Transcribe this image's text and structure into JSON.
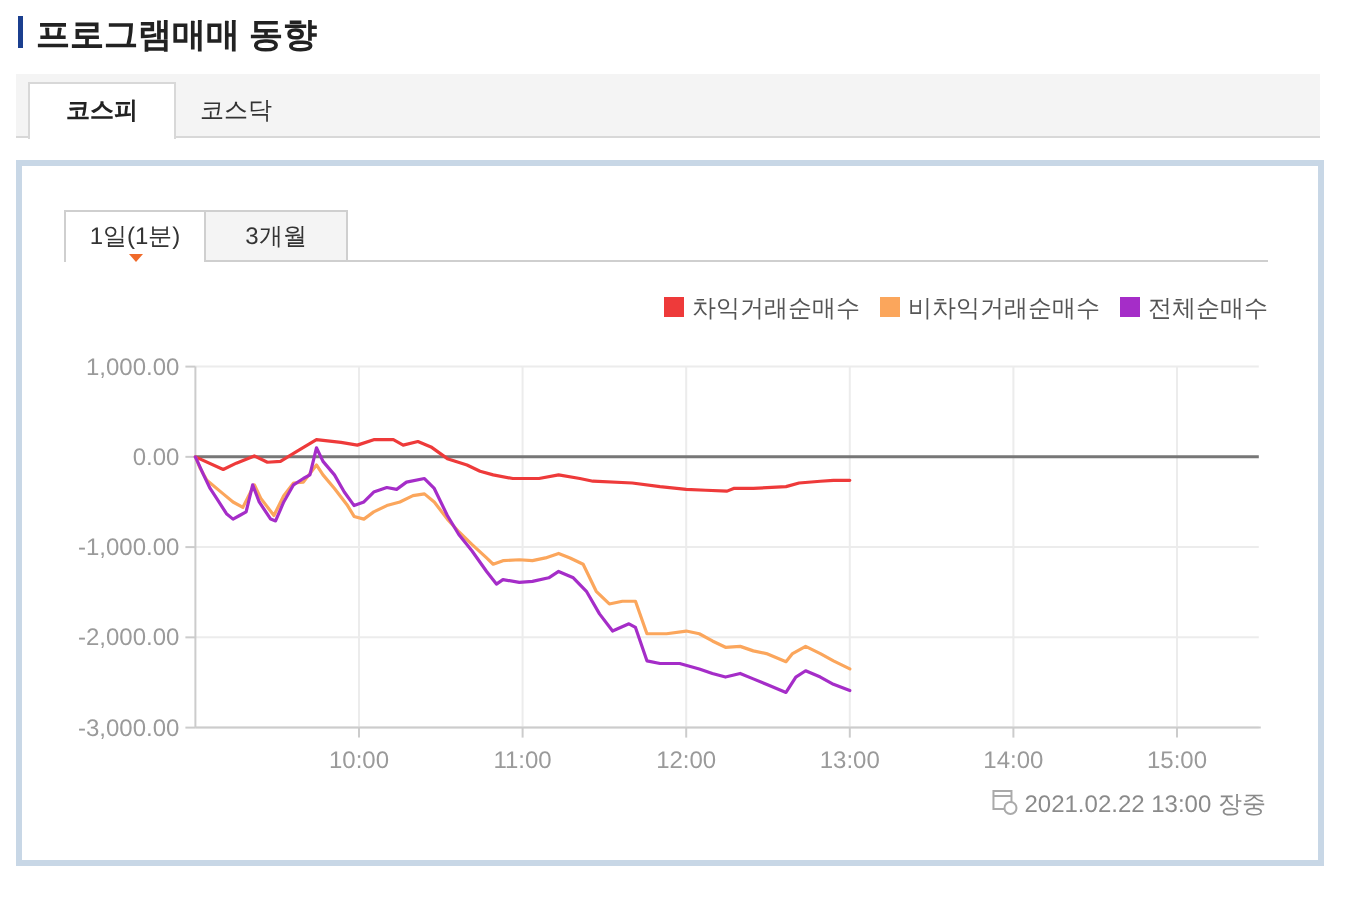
{
  "chart_data": {
    "type": "line",
    "title": "프로그램매매 동향",
    "annotations": [
      "코스피",
      "코스닥",
      "1일(1분)",
      "3개월",
      "2021.02.22 13:00 장중"
    ],
    "xlim": [
      9,
      15.5
    ],
    "xticks": [
      {
        "value": 10,
        "label": "10:00"
      },
      {
        "value": 11,
        "label": "11:00"
      },
      {
        "value": 12,
        "label": "12:00"
      },
      {
        "value": 13,
        "label": "13:00"
      },
      {
        "value": 14,
        "label": "14:00"
      },
      {
        "value": 15,
        "label": "15:00"
      }
    ],
    "ylim": [
      -3000,
      1000
    ],
    "yticks": [
      {
        "value": 1000,
        "label": "1,000.00"
      },
      {
        "value": 0,
        "label": "0.00"
      },
      {
        "value": -1000,
        "label": "-1,000.00"
      },
      {
        "value": -2000,
        "label": "-2,000.00"
      },
      {
        "value": -3000,
        "label": "-3,000.00"
      }
    ],
    "grid": true,
    "legend": "top right",
    "ref_lines": [
      {
        "axis": "y",
        "value": 0,
        "color": "#777777"
      }
    ],
    "series": [
      {
        "name": "차익거래순매수",
        "color": "#ee3a3a",
        "x": [
          9.0,
          9.17,
          9.25,
          9.36,
          9.44,
          9.52,
          9.62,
          9.74,
          9.89,
          9.99,
          10.09,
          10.21,
          10.27,
          10.36,
          10.44,
          10.54,
          10.66,
          10.74,
          10.82,
          10.94,
          11.1,
          11.22,
          11.35,
          11.43,
          11.67,
          11.84,
          12.0,
          12.12,
          12.25,
          12.29,
          12.41,
          12.61,
          12.69,
          12.82,
          12.9,
          13.0
        ],
        "values": [
          0,
          -140,
          -70,
          10,
          -60,
          -50,
          60,
          190,
          160,
          130,
          190,
          190,
          130,
          170,
          110,
          -20,
          -90,
          -160,
          -200,
          -240,
          -240,
          -200,
          -240,
          -270,
          -290,
          -330,
          -360,
          -370,
          -380,
          -350,
          -350,
          -330,
          -290,
          -270,
          -260,
          -260
        ]
      },
      {
        "name": "비차익거래순매수",
        "color": "#fba65c",
        "x": [
          9.0,
          9.03,
          9.07,
          9.17,
          9.23,
          9.29,
          9.36,
          9.4,
          9.48,
          9.54,
          9.6,
          9.66,
          9.74,
          9.78,
          9.85,
          9.93,
          9.97,
          10.03,
          10.09,
          10.17,
          10.25,
          10.33,
          10.4,
          10.46,
          10.54,
          10.61,
          10.69,
          10.78,
          10.82,
          10.88,
          10.98,
          11.06,
          11.14,
          11.22,
          11.29,
          11.37,
          11.45,
          11.53,
          11.61,
          11.69,
          11.76,
          11.88,
          12.0,
          12.08,
          12.16,
          12.24,
          12.33,
          12.41,
          12.49,
          12.61,
          12.65,
          12.73,
          12.82,
          12.9,
          13.0
        ],
        "values": [
          0,
          -130,
          -260,
          -410,
          -500,
          -560,
          -310,
          -460,
          -650,
          -430,
          -290,
          -280,
          -90,
          -200,
          -350,
          -540,
          -660,
          -690,
          -610,
          -540,
          -500,
          -430,
          -410,
          -500,
          -690,
          -830,
          -970,
          -1120,
          -1190,
          -1150,
          -1140,
          -1150,
          -1120,
          -1070,
          -1120,
          -1190,
          -1490,
          -1630,
          -1600,
          -1600,
          -1960,
          -1960,
          -1930,
          -1960,
          -2040,
          -2110,
          -2100,
          -2150,
          -2180,
          -2270,
          -2180,
          -2100,
          -2180,
          -2260,
          -2350
        ]
      },
      {
        "name": "전체순매수",
        "color": "#a52dc8",
        "x": [
          9.0,
          9.05,
          9.09,
          9.13,
          9.19,
          9.23,
          9.27,
          9.31,
          9.35,
          9.39,
          9.46,
          9.49,
          9.54,
          9.6,
          9.66,
          9.7,
          9.74,
          9.78,
          9.85,
          9.91,
          9.97,
          10.03,
          10.09,
          10.17,
          10.23,
          10.29,
          10.4,
          10.46,
          10.54,
          10.61,
          10.69,
          10.78,
          10.84,
          10.88,
          10.98,
          11.06,
          11.16,
          11.22,
          11.31,
          11.39,
          11.47,
          11.55,
          11.65,
          11.69,
          11.76,
          11.84,
          11.96,
          12.08,
          12.16,
          12.24,
          12.33,
          12.41,
          12.49,
          12.61,
          12.67,
          12.73,
          12.82,
          12.9,
          13.0
        ],
        "values": [
          0,
          -200,
          -350,
          -460,
          -630,
          -690,
          -650,
          -610,
          -310,
          -500,
          -690,
          -710,
          -500,
          -310,
          -240,
          -200,
          100,
          -50,
          -200,
          -390,
          -540,
          -500,
          -390,
          -340,
          -360,
          -280,
          -240,
          -350,
          -650,
          -860,
          -1040,
          -1270,
          -1410,
          -1360,
          -1390,
          -1380,
          -1340,
          -1270,
          -1340,
          -1490,
          -1740,
          -1930,
          -1850,
          -1890,
          -2260,
          -2290,
          -2290,
          -2350,
          -2400,
          -2440,
          -2400,
          -2460,
          -2520,
          -2610,
          -2440,
          -2370,
          -2440,
          -2520,
          -2590
        ]
      }
    ]
  }
}
